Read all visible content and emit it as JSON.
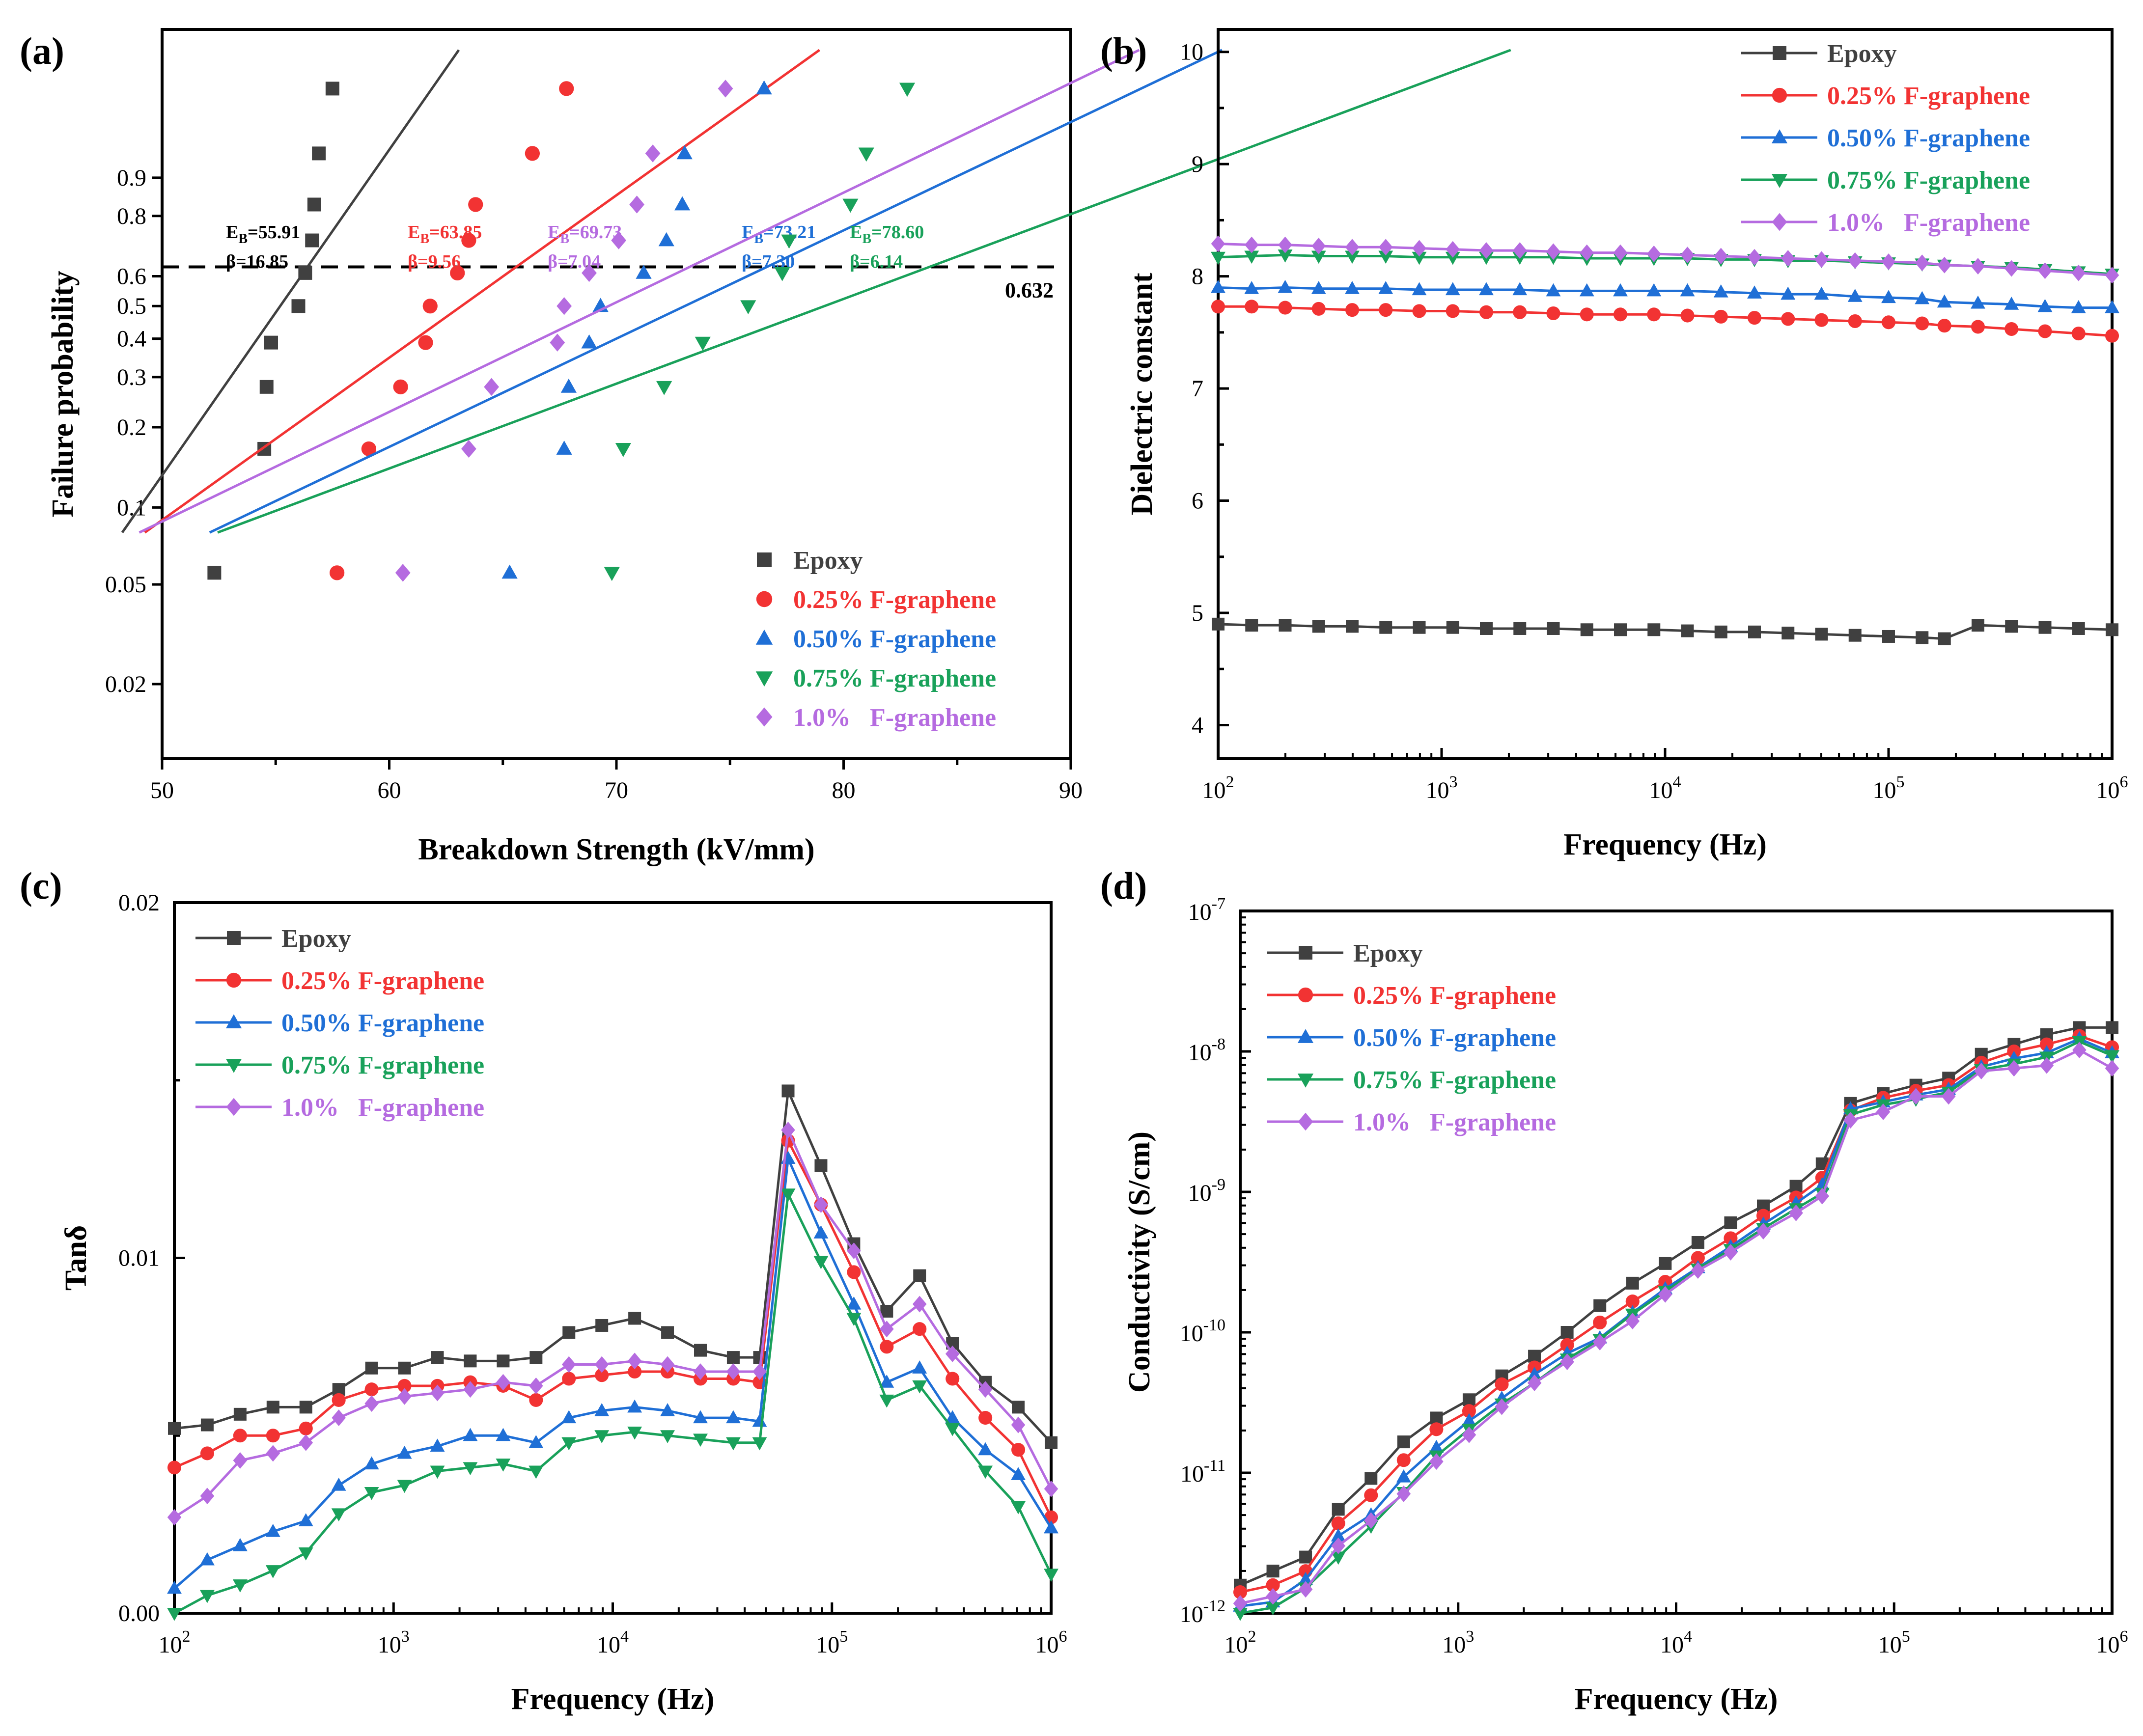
{
  "colors": {
    "Epoxy": "#404040",
    "0.25% F-graphene": "#f23333",
    "0.50% F-graphene": "#1f6fd6",
    "0.75% F-graphene": "#19a15a",
    "1.0%   F-graphene": "#b56be0"
  },
  "chart_data": [
    {
      "id": "a",
      "panel_label": "(a)",
      "type": "scatter",
      "xlabel": "Breakdown Strength (kV/mm)",
      "ylabel": "Failure probability",
      "xlim": [
        50,
        90
      ],
      "yscale": "weibull",
      "ylim": [
        0.01,
        0.9999
      ],
      "xticks": [
        "50",
        "60",
        "70",
        "80",
        "90"
      ],
      "yticks": [
        "0.02",
        "0.05",
        "0.1",
        "0.2",
        "0.3",
        "0.4",
        "0.5",
        "0.6",
        "0.8",
        "0.9"
      ],
      "reference_line": {
        "y": 0.632,
        "label": "0.632"
      },
      "legend_position": "bottom-right",
      "series": [
        {
          "name": "Epoxy",
          "marker": "square",
          "x": [
            52.3,
            54.5,
            54.6,
            54.8,
            56.0,
            56.3,
            56.6,
            56.7,
            56.9,
            57.5
          ],
          "y": [
            0.0556,
            0.1667,
            0.2778,
            0.3889,
            0.5,
            0.6111,
            0.7222,
            0.8333,
            0.9444,
            0.995
          ],
          "fit": {
            "eb": 55.91,
            "beta": 16.85
          },
          "annotation": [
            "E_B=55.91",
            "β=16.85"
          ]
        },
        {
          "name": "0.25% F-graphene",
          "marker": "circle",
          "x": [
            57.7,
            59.1,
            60.5,
            61.6,
            61.8,
            63.0,
            63.5,
            63.8,
            66.3,
            67.8
          ],
          "y": [
            0.0556,
            0.1667,
            0.2778,
            0.3889,
            0.5,
            0.6111,
            0.7222,
            0.8333,
            0.9444,
            0.995
          ],
          "fit": {
            "eb": 63.85,
            "beta": 9.56
          },
          "annotation": [
            "E_B=63.85",
            "β=9.56"
          ]
        },
        {
          "name": "0.50% F-graphene",
          "marker": "triangle-up",
          "x": [
            65.3,
            67.7,
            67.9,
            68.8,
            69.3,
            71.2,
            72.2,
            72.9,
            73.0,
            76.5
          ],
          "y": [
            0.0556,
            0.1667,
            0.2778,
            0.3889,
            0.5,
            0.6111,
            0.7222,
            0.8333,
            0.9444,
            0.995
          ],
          "fit": {
            "eb": 73.21,
            "beta": 7.3
          },
          "annotation": [
            "E_B=73.21",
            "β=7.30"
          ]
        },
        {
          "name": "0.75% F-graphene",
          "marker": "triangle-down",
          "x": [
            69.8,
            70.3,
            72.1,
            73.8,
            75.8,
            77.3,
            77.6,
            80.3,
            81.0,
            82.8
          ],
          "y": [
            0.0556,
            0.1667,
            0.2778,
            0.3889,
            0.5,
            0.6111,
            0.7222,
            0.8333,
            0.9444,
            0.995
          ],
          "fit": {
            "eb": 78.6,
            "beta": 6.14
          },
          "annotation": [
            "E_B=78.60",
            "β=6.14"
          ]
        },
        {
          "name": "1.0%   F-graphene",
          "marker": "diamond",
          "x": [
            60.6,
            63.5,
            64.5,
            67.4,
            67.7,
            68.8,
            70.1,
            70.9,
            71.6,
            74.8
          ],
          "y": [
            0.0556,
            0.1667,
            0.2778,
            0.3889,
            0.5,
            0.6111,
            0.7222,
            0.8333,
            0.9444,
            0.995
          ],
          "fit": {
            "eb": 69.73,
            "beta": 7.04
          },
          "annotation": [
            "E_B=69.73",
            "β=7.04"
          ]
        }
      ]
    },
    {
      "id": "b",
      "panel_label": "(b)",
      "type": "line",
      "xlabel": "Frequency (Hz)",
      "ylabel": "Dielectric constant",
      "xscale": "log",
      "xlim": [
        100,
        1000000
      ],
      "ylim": [
        3.7,
        10.2
      ],
      "xticks": [
        "2",
        "3",
        "4",
        "5",
        "6"
      ],
      "yticks": [
        "4",
        "5",
        "6",
        "7",
        "8",
        "9",
        "10"
      ],
      "legend_position": "top-right",
      "log_x": [
        2.0,
        2.15,
        2.3,
        2.45,
        2.6,
        2.75,
        2.9,
        3.05,
        3.2,
        3.35,
        3.5,
        3.65,
        3.8,
        3.95,
        4.1,
        4.25,
        4.4,
        4.55,
        4.7,
        4.85,
        5.0,
        5.15,
        5.25,
        5.4,
        5.55,
        5.7,
        5.85,
        6.0
      ],
      "series": [
        {
          "name": "Epoxy",
          "marker": "square",
          "values": [
            4.9,
            4.89,
            4.89,
            4.88,
            4.88,
            4.87,
            4.87,
            4.87,
            4.86,
            4.86,
            4.86,
            4.85,
            4.85,
            4.85,
            4.84,
            4.83,
            4.83,
            4.82,
            4.81,
            4.8,
            4.79,
            4.78,
            4.77,
            4.89,
            4.88,
            4.87,
            4.86,
            4.85
          ]
        },
        {
          "name": "0.25% F-graphene",
          "marker": "circle",
          "values": [
            7.73,
            7.73,
            7.72,
            7.71,
            7.7,
            7.7,
            7.69,
            7.69,
            7.68,
            7.68,
            7.67,
            7.66,
            7.66,
            7.66,
            7.65,
            7.64,
            7.63,
            7.62,
            7.61,
            7.6,
            7.59,
            7.58,
            7.56,
            7.55,
            7.53,
            7.51,
            7.49,
            7.47
          ]
        },
        {
          "name": "0.50% F-graphene",
          "marker": "triangle-up",
          "values": [
            7.9,
            7.89,
            7.9,
            7.89,
            7.89,
            7.89,
            7.88,
            7.88,
            7.88,
            7.88,
            7.87,
            7.87,
            7.87,
            7.87,
            7.87,
            7.86,
            7.85,
            7.84,
            7.84,
            7.82,
            7.81,
            7.8,
            7.77,
            7.76,
            7.75,
            7.73,
            7.72,
            7.72
          ]
        },
        {
          "name": "0.75% F-graphene",
          "marker": "triangle-down",
          "values": [
            8.17,
            8.18,
            8.19,
            8.18,
            8.18,
            8.18,
            8.17,
            8.17,
            8.17,
            8.17,
            8.17,
            8.16,
            8.16,
            8.16,
            8.16,
            8.15,
            8.15,
            8.14,
            8.14,
            8.13,
            8.12,
            8.11,
            8.1,
            8.09,
            8.08,
            8.06,
            8.04,
            8.02
          ]
        },
        {
          "name": "1.0%   F-graphene",
          "marker": "diamond",
          "values": [
            8.29,
            8.28,
            8.28,
            8.27,
            8.26,
            8.26,
            8.25,
            8.24,
            8.23,
            8.23,
            8.22,
            8.21,
            8.21,
            8.2,
            8.19,
            8.18,
            8.17,
            8.16,
            8.15,
            8.14,
            8.13,
            8.12,
            8.1,
            8.09,
            8.07,
            8.05,
            8.03,
            8.01
          ]
        }
      ]
    },
    {
      "id": "c",
      "panel_label": "(c)",
      "type": "line",
      "xlabel": "Frequency (Hz)",
      "ylabel": "Tanδ",
      "xscale": "log",
      "xlim": [
        100,
        1000000
      ],
      "ylim": [
        0,
        0.02
      ],
      "xticks": [
        "2",
        "3",
        "4",
        "5",
        "6"
      ],
      "yticks": [
        "0.00",
        "0.01",
        "0.02"
      ],
      "legend_position": "top-left",
      "log_x": [
        2.0,
        2.15,
        2.3,
        2.45,
        2.6,
        2.75,
        2.9,
        3.05,
        3.2,
        3.35,
        3.5,
        3.65,
        3.8,
        3.95,
        4.1,
        4.25,
        4.4,
        4.55,
        4.67,
        4.8,
        4.95,
        5.1,
        5.25,
        5.4,
        5.55,
        5.7,
        5.85,
        6.0
      ],
      "series": [
        {
          "name": "Epoxy",
          "marker": "square",
          "values": [
            0.0052,
            0.0053,
            0.0056,
            0.0058,
            0.0058,
            0.0063,
            0.0069,
            0.0069,
            0.0072,
            0.0071,
            0.0071,
            0.0072,
            0.0079,
            0.0081,
            0.0083,
            0.0079,
            0.0074,
            0.0072,
            0.0072,
            0.0147,
            0.0126,
            0.0104,
            0.0085,
            0.0095,
            0.0076,
            0.0065,
            0.0058,
            0.0048
          ]
        },
        {
          "name": "0.25% F-graphene",
          "marker": "circle",
          "values": [
            0.0041,
            0.0045,
            0.005,
            0.005,
            0.0052,
            0.006,
            0.0063,
            0.0064,
            0.0064,
            0.0065,
            0.0064,
            0.006,
            0.0066,
            0.0067,
            0.0068,
            0.0068,
            0.0066,
            0.0066,
            0.0065,
            0.0133,
            0.0115,
            0.0096,
            0.0075,
            0.008,
            0.0066,
            0.0055,
            0.0046,
            0.0027
          ]
        },
        {
          "name": "0.50% F-graphene",
          "marker": "triangle-up",
          "values": [
            0.0007,
            0.0015,
            0.0019,
            0.0023,
            0.0026,
            0.0036,
            0.0042,
            0.0045,
            0.0047,
            0.005,
            0.005,
            0.0048,
            0.0055,
            0.0057,
            0.0058,
            0.0057,
            0.0055,
            0.0055,
            0.0054,
            0.0128,
            0.0107,
            0.0087,
            0.0065,
            0.0069,
            0.0055,
            0.0046,
            0.0039,
            0.0024
          ]
        },
        {
          "name": "0.75% F-graphene",
          "marker": "triangle-down",
          "values": [
            0.0,
            0.0005,
            0.0008,
            0.0012,
            0.0017,
            0.0028,
            0.0034,
            0.0036,
            0.004,
            0.0041,
            0.0042,
            0.004,
            0.0048,
            0.005,
            0.0051,
            0.005,
            0.0049,
            0.0048,
            0.0048,
            0.0118,
            0.0099,
            0.0083,
            0.006,
            0.0064,
            0.0052,
            0.004,
            0.003,
            0.0011
          ]
        },
        {
          "name": "1.0%   F-graphene",
          "marker": "diamond",
          "values": [
            0.0027,
            0.0033,
            0.0043,
            0.0045,
            0.0048,
            0.0055,
            0.0059,
            0.0061,
            0.0062,
            0.0063,
            0.0065,
            0.0064,
            0.007,
            0.007,
            0.0071,
            0.007,
            0.0068,
            0.0068,
            0.0068,
            0.0136,
            0.0115,
            0.0102,
            0.008,
            0.0087,
            0.0073,
            0.0063,
            0.0053,
            0.0035
          ]
        }
      ]
    },
    {
      "id": "d",
      "panel_label": "(d)",
      "type": "line",
      "xlabel": "Frequency (Hz)",
      "ylabel": "Conductivity (S/cm)",
      "xscale": "log",
      "yscale": "log",
      "xlim": [
        100,
        1000000
      ],
      "ylim": [
        1e-12,
        1e-07
      ],
      "xticks": [
        "2",
        "3",
        "4",
        "5",
        "6"
      ],
      "yticks": [
        "-12",
        "-11",
        "-10",
        "-9",
        "-8",
        "-7"
      ],
      "legend_position": "top-left",
      "log_x": [
        2.0,
        2.15,
        2.3,
        2.45,
        2.6,
        2.75,
        2.9,
        3.05,
        3.2,
        3.35,
        3.5,
        3.65,
        3.8,
        3.95,
        4.1,
        4.25,
        4.4,
        4.55,
        4.67,
        4.8,
        4.95,
        5.1,
        5.25,
        5.4,
        5.55,
        5.7,
        5.85,
        6.0
      ],
      "series": [
        {
          "name": "Epoxy",
          "marker": "square",
          "log_values": [
            -11.8,
            -11.7,
            -11.6,
            -11.26,
            -11.04,
            -10.78,
            -10.61,
            -10.48,
            -10.31,
            -10.17,
            -10.0,
            -9.81,
            -9.65,
            -9.51,
            -9.36,
            -9.22,
            -9.1,
            -8.96,
            -8.8,
            -8.37,
            -8.3,
            -8.24,
            -8.19,
            -8.02,
            -7.95,
            -7.88,
            -7.83,
            -7.83
          ]
        },
        {
          "name": "0.25% F-graphene",
          "marker": "circle",
          "log_values": [
            -11.85,
            -11.8,
            -11.7,
            -11.36,
            -11.16,
            -10.91,
            -10.69,
            -10.56,
            -10.37,
            -10.25,
            -10.09,
            -9.93,
            -9.78,
            -9.64,
            -9.47,
            -9.33,
            -9.17,
            -9.04,
            -8.9,
            -8.42,
            -8.33,
            -8.28,
            -8.24,
            -8.08,
            -8.0,
            -7.95,
            -7.89,
            -7.97
          ]
        },
        {
          "name": "0.50% F-graphene",
          "marker": "triangle-up",
          "log_values": [
            -11.95,
            -11.92,
            -11.76,
            -11.45,
            -11.3,
            -11.03,
            -10.82,
            -10.63,
            -10.47,
            -10.3,
            -10.15,
            -10.04,
            -9.86,
            -9.69,
            -9.54,
            -9.39,
            -9.23,
            -9.08,
            -8.95,
            -8.41,
            -8.36,
            -8.31,
            -8.27,
            -8.11,
            -8.05,
            -8.01,
            -7.91,
            -8.01
          ]
        },
        {
          "name": "0.75% F-graphene",
          "marker": "triangle-down",
          "log_values": [
            -12.0,
            -11.96,
            -11.82,
            -11.6,
            -11.38,
            -11.14,
            -10.88,
            -10.69,
            -10.51,
            -10.36,
            -10.19,
            -10.05,
            -9.87,
            -9.71,
            -9.55,
            -9.41,
            -9.26,
            -9.12,
            -9.01,
            -8.45,
            -8.38,
            -8.34,
            -8.29,
            -8.13,
            -8.09,
            -8.04,
            -7.93,
            -8.03
          ]
        },
        {
          "name": "1.0%   F-graphene",
          "marker": "diamond",
          "log_values": [
            -11.93,
            -11.88,
            -11.83,
            -11.52,
            -11.34,
            -11.15,
            -10.92,
            -10.73,
            -10.53,
            -10.36,
            -10.21,
            -10.07,
            -9.92,
            -9.73,
            -9.56,
            -9.43,
            -9.28,
            -9.15,
            -9.03,
            -8.49,
            -8.43,
            -8.32,
            -8.32,
            -8.14,
            -8.12,
            -8.1,
            -7.99,
            -8.12
          ]
        }
      ]
    }
  ]
}
